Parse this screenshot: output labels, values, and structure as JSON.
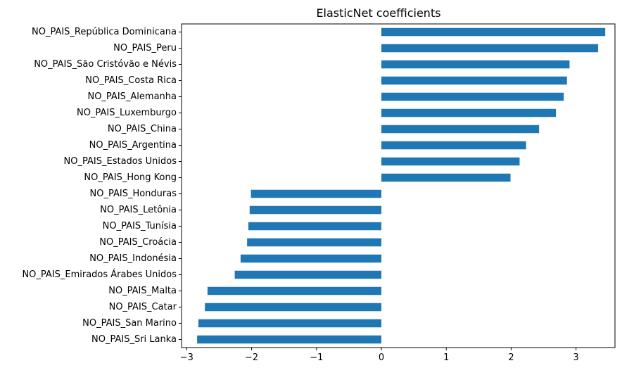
{
  "chart_data": {
    "type": "bar",
    "orientation": "horizontal",
    "title": "ElasticNet coefficients",
    "xlabel": "",
    "ylabel": "",
    "categories": [
      "NO_PAIS_República Dominicana",
      "NO_PAIS_Peru",
      "NO_PAIS_São Cristóvão e Névis",
      "NO_PAIS_Costa Rica",
      "NO_PAIS_Alemanha",
      "NO_PAIS_Luxemburgo",
      "NO_PAIS_China",
      "NO_PAIS_Argentina",
      "NO_PAIS_Estados Unidos",
      "NO_PAIS_Hong Kong",
      "NO_PAIS_Honduras",
      "NO_PAIS_Letônia",
      "NO_PAIS_Tunísia",
      "NO_PAIS_Croácia",
      "NO_PAIS_Indonésia",
      "NO_PAIS_Emirados Árabes Unidos",
      "NO_PAIS_Malta",
      "NO_PAIS_Catar",
      "NO_PAIS_San Marino",
      "NO_PAIS_Sri Lanka"
    ],
    "values": [
      3.45,
      3.34,
      2.9,
      2.86,
      2.81,
      2.69,
      2.43,
      2.23,
      2.13,
      1.99,
      -2.01,
      -2.03,
      -2.05,
      -2.07,
      -2.17,
      -2.26,
      -2.68,
      -2.72,
      -2.82,
      -2.84
    ],
    "xlim": [
      -3.08,
      3.6
    ],
    "xticks": [
      -3,
      -2,
      -1,
      0,
      1,
      2,
      3
    ],
    "xtick_labels": [
      "−3",
      "−2",
      "−1",
      "0",
      "1",
      "2",
      "3"
    ],
    "bar_color": "#1f77b4",
    "grid": false,
    "legend": "none"
  }
}
